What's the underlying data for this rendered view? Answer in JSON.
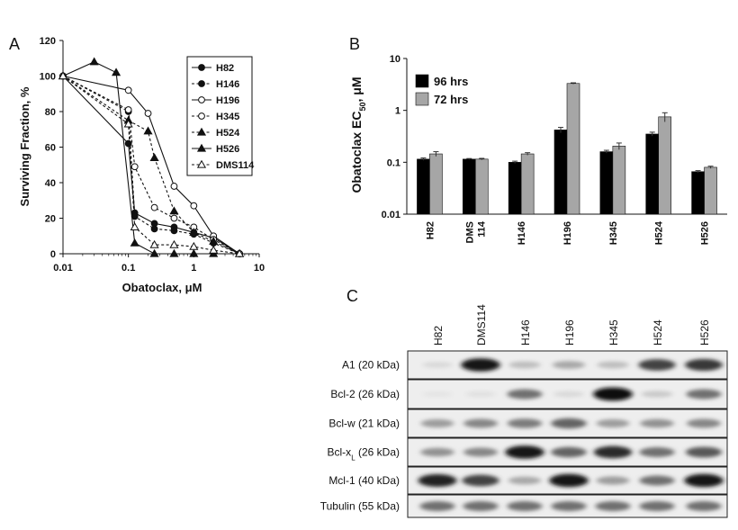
{
  "panel_labels": {
    "a": "A",
    "b": "B",
    "c": "C"
  },
  "chart_data": [
    {
      "type": "line",
      "panel": "A",
      "xlabel": "Obatoclax, μM",
      "ylabel": "Surviving Fraction, %",
      "xscale": "log",
      "xlim": [
        0.01,
        10
      ],
      "ylim": [
        0,
        120
      ],
      "xticks": [
        0.01,
        0.1,
        1,
        10
      ],
      "xtick_labels": [
        "0.01",
        "0.1",
        "1",
        "10"
      ],
      "yticks": [
        0,
        20,
        40,
        60,
        80,
        100,
        120
      ],
      "ytick_labels": [
        "0",
        "20",
        "40",
        "60",
        "80",
        "100",
        "120"
      ],
      "legend_position": "top-right",
      "series": [
        {
          "name": "H82",
          "marker": "circle-filled",
          "line": "solid",
          "x": [
            0.01,
            0.1,
            0.125,
            0.25,
            0.5,
            1,
            2,
            5
          ],
          "y": [
            100,
            62,
            23,
            17,
            15,
            12,
            9,
            0
          ]
        },
        {
          "name": "H146",
          "marker": "circle-filled",
          "line": "dashed",
          "x": [
            0.01,
            0.1,
            0.125,
            0.25,
            0.5,
            1,
            2,
            5
          ],
          "y": [
            100,
            80,
            21,
            14,
            13,
            11,
            6,
            0
          ]
        },
        {
          "name": "H196",
          "marker": "circle-open",
          "line": "solid",
          "x": [
            0.01,
            0.1,
            0.2,
            0.5,
            1,
            2,
            5
          ],
          "y": [
            100,
            92,
            79,
            38,
            27,
            10,
            0
          ]
        },
        {
          "name": "H345",
          "marker": "circle-open",
          "line": "dashed",
          "x": [
            0.01,
            0.1,
            0.125,
            0.25,
            0.5,
            1,
            2,
            5
          ],
          "y": [
            100,
            81,
            49,
            26,
            20,
            15,
            8,
            0
          ]
        },
        {
          "name": "H524",
          "marker": "triangle-filled",
          "line": "dashed",
          "x": [
            0.01,
            0.1,
            0.2,
            0.25,
            0.5,
            1,
            2,
            5
          ],
          "y": [
            100,
            75,
            69,
            54,
            24,
            12,
            7,
            0
          ]
        },
        {
          "name": "H526",
          "marker": "triangle-filled",
          "line": "solid",
          "x": [
            0.01,
            0.03,
            0.065,
            0.125,
            0.25,
            0.5,
            1,
            2
          ],
          "y": [
            100,
            108,
            102,
            6,
            0,
            0,
            0,
            0
          ]
        },
        {
          "name": "DMS114",
          "marker": "triangle-open",
          "line": "dashed",
          "x": [
            0.01,
            0.1,
            0.125,
            0.25,
            0.5,
            1,
            2,
            5
          ],
          "y": [
            100,
            73,
            15,
            5,
            5,
            4,
            2,
            0
          ]
        }
      ]
    },
    {
      "type": "bar",
      "panel": "B",
      "ylabel_main": "Obatoclax EC",
      "ylabel_sub": "50",
      "ylabel_tail": ", μM",
      "yscale": "log",
      "ylim": [
        0.01,
        10
      ],
      "yticks": [
        0.01,
        0.1,
        1,
        10
      ],
      "ytick_labels": [
        "0.01",
        "0.1",
        "1",
        "10"
      ],
      "legend_position": "top-left",
      "categories": [
        "H82",
        "DMS 114",
        "H146",
        "H196",
        "H345",
        "H524",
        "H526"
      ],
      "series": [
        {
          "name": "96 hrs",
          "color": "#000000",
          "values": [
            0.115,
            0.115,
            0.1,
            0.42,
            0.16,
            0.35,
            0.066
          ],
          "errors": [
            0.006,
            0.003,
            0.005,
            0.05,
            0.01,
            0.03,
            0.003
          ]
        },
        {
          "name": "72 hrs",
          "color": "#a6a6a6",
          "values": [
            0.145,
            0.115,
            0.145,
            3.3,
            0.205,
            0.75,
            0.08
          ],
          "errors": [
            0.015,
            0.004,
            0.008,
            0.1,
            0.03,
            0.15,
            0.004
          ]
        }
      ]
    }
  ],
  "blot": {
    "panel": "C",
    "columns": [
      "H82",
      "DMS114",
      "H146",
      "H196",
      "H345",
      "H524",
      "H526"
    ],
    "rows": [
      {
        "label": "A1 (20 kDa)",
        "intensity": [
          0.08,
          0.95,
          0.2,
          0.3,
          0.2,
          0.75,
          0.8
        ]
      },
      {
        "label": "Bcl-2 (26 kDa)",
        "intensity": [
          0.03,
          0.05,
          0.55,
          0.08,
          0.98,
          0.15,
          0.55
        ]
      },
      {
        "label": "Bcl-w (21 kDa)",
        "intensity": [
          0.35,
          0.45,
          0.5,
          0.6,
          0.35,
          0.4,
          0.45
        ]
      },
      {
        "label_main": "Bcl-x",
        "label_sub": "L",
        "label_tail": " (26 kDa)",
        "intensity": [
          0.4,
          0.45,
          0.95,
          0.6,
          0.85,
          0.55,
          0.65
        ]
      },
      {
        "label": "Mcl-1 (40 kDa)",
        "intensity": [
          0.9,
          0.75,
          0.3,
          0.95,
          0.35,
          0.55,
          0.95
        ]
      },
      {
        "label": "Tubulin (55 kDa)",
        "intensity": [
          0.55,
          0.55,
          0.55,
          0.55,
          0.55,
          0.55,
          0.55
        ]
      }
    ]
  }
}
